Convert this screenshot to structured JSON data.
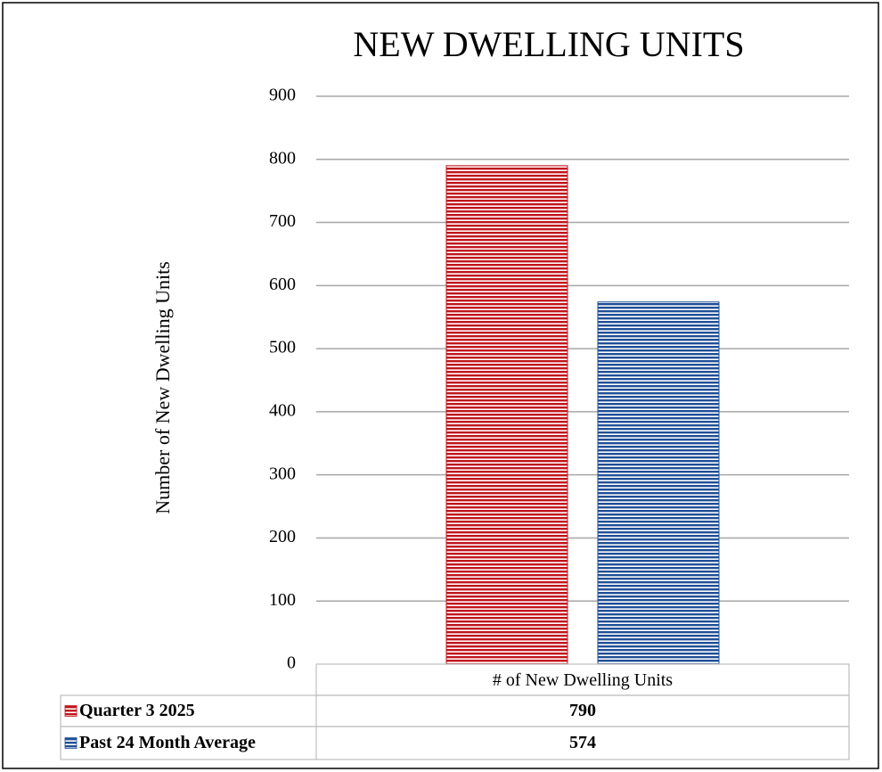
{
  "chart_data": {
    "type": "bar",
    "title": "NEW DWELLING UNITS",
    "y_label": "Number of New Dwelling Units",
    "categories": [
      "# of New Dwelling Units"
    ],
    "series": [
      {
        "name": "Quarter 3 2025",
        "color": "#c0141c",
        "values": [
          790
        ]
      },
      {
        "name": "Past 24 Month Average",
        "color": "#1f4e96",
        "values": [
          574
        ]
      }
    ],
    "ylim": [
      0,
      900
    ],
    "yticks": [
      0,
      100,
      200,
      300,
      400,
      500,
      600,
      700,
      800,
      900
    ],
    "grid": true,
    "data_table": true
  }
}
